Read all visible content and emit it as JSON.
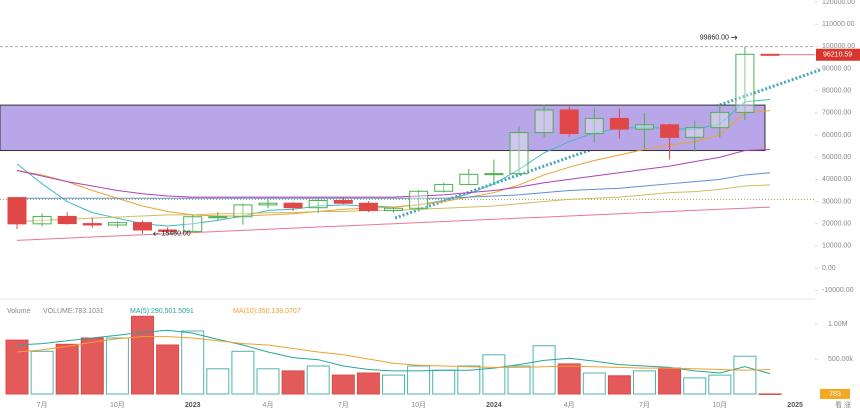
{
  "chart_data": {
    "type": "candlestick",
    "categories": [
      null,
      "7月",
      null,
      null,
      "10月",
      null,
      null,
      "2023",
      null,
      null,
      "4月",
      null,
      null,
      "7月",
      null,
      null,
      "10月",
      null,
      null,
      "2024",
      null,
      null,
      "4月",
      null,
      null,
      "7月",
      null,
      null,
      "10月",
      null,
      null,
      "2025"
    ],
    "open": [
      31790,
      19940,
      23290,
      20050,
      19430,
      20490,
      17170,
      16540,
      23140,
      23150,
      28480,
      29250,
      27220,
      30480,
      29230,
      25940,
      26970,
      34640,
      37720,
      42280,
      42580,
      61130,
      71290,
      60660,
      67490,
      62680,
      64620,
      58970,
      63330,
      70220,
      96400,
      null
    ],
    "high": [
      31960,
      24670,
      25200,
      22800,
      21090,
      21480,
      18390,
      23960,
      25250,
      29190,
      31000,
      29820,
      31430,
      31860,
      30210,
      27490,
      35200,
      38450,
      44730,
      48970,
      63910,
      73800,
      72800,
      71980,
      71980,
      70020,
      65100,
      66500,
      73620,
      99860,
      96500,
      null
    ],
    "low": [
      17620,
      18780,
      19540,
      18150,
      18190,
      15460,
      16260,
      16500,
      21350,
      19570,
      26940,
      25810,
      24800,
      28860,
      25170,
      24900,
      26560,
      34100,
      37630,
      38500,
      41880,
      59010,
      59150,
      56560,
      58400,
      53550,
      49000,
      52550,
      58870,
      66800,
      96000,
      null
    ],
    "close": [
      19940,
      23290,
      20050,
      19430,
      20490,
      17170,
      16540,
      23140,
      23150,
      28480,
      29250,
      27220,
      30480,
      29230,
      25940,
      26970,
      34640,
      37720,
      42280,
      42580,
      61130,
      71290,
      60660,
      67490,
      62680,
      64620,
      58970,
      63330,
      70220,
      96400,
      96210.59,
      null
    ],
    "up_color": "#4caf50",
    "down_color": "#e04848",
    "ylim": [
      -13500,
      120900
    ],
    "yticks": [
      {
        "value": 120000,
        "label": "120000.00"
      },
      {
        "value": 110000,
        "label": "110000.00"
      },
      {
        "value": 100000,
        "label": "100000.00"
      },
      {
        "value": 90000,
        "label": "90000.00"
      },
      {
        "value": 80000,
        "label": "80000.00"
      },
      {
        "value": 70000,
        "label": "70000.00"
      },
      {
        "value": 60000,
        "label": "60000.00"
      },
      {
        "value": 50000,
        "label": "50000.00"
      },
      {
        "value": 40000,
        "label": "40000.00"
      },
      {
        "value": 30000,
        "label": "30000.00"
      },
      {
        "value": 20000,
        "label": "20000.00"
      },
      {
        "value": 10000,
        "label": "10000.00"
      },
      {
        "value": 0,
        "label": "0.00"
      },
      {
        "value": -10000,
        "label": "-10000.00"
      }
    ],
    "grid": false,
    "zone_range": [
      53000,
      73500
    ],
    "level_line": 31000,
    "annotations": [
      {
        "value": 99860,
        "label": "99860.00"
      },
      {
        "value": 15460,
        "label": "15460.00"
      }
    ],
    "moving_averages": [
      {
        "color": "#3fb8c8",
        "values": [
          47000,
          38000,
          30000,
          25000,
          22500,
          20000,
          19000,
          20000,
          21500,
          23500,
          26000,
          26500,
          28000,
          28500,
          28000,
          27500,
          28500,
          30500,
          33500,
          38000,
          44500,
          52000,
          57000,
          61000,
          63000,
          63500,
          63000,
          62500,
          65000,
          75000,
          76000,
          null
        ]
      },
      {
        "color": "#f0a030",
        "values": [
          44000,
          42000,
          39000,
          35000,
          31500,
          28000,
          25500,
          24000,
          23500,
          23500,
          24000,
          24500,
          25500,
          26500,
          27000,
          27500,
          28500,
          30000,
          32000,
          34000,
          37500,
          42000,
          45500,
          48500,
          51000,
          53500,
          55500,
          57000,
          60000,
          70000,
          71000,
          null
        ]
      },
      {
        "color": "#b040b8",
        "values": [
          44000,
          41500,
          39000,
          37000,
          35000,
          33500,
          32500,
          32000,
          32000,
          32000,
          32000,
          32000,
          32000,
          32000,
          32000,
          32000,
          32500,
          33000,
          34000,
          35000,
          36500,
          38500,
          40000,
          41500,
          43000,
          44500,
          46000,
          48000,
          50000,
          53000,
          53500,
          null
        ]
      },
      {
        "color": "#5b8fd8",
        "values": [
          31500,
          31500,
          31500,
          31500,
          31500,
          31500,
          31500,
          31500,
          31500,
          31500,
          31500,
          31500,
          31500,
          31500,
          31500,
          31500,
          31500,
          31500,
          32000,
          32500,
          33000,
          34000,
          35000,
          35500,
          36000,
          37000,
          38000,
          39000,
          40000,
          42000,
          43000,
          null
        ]
      },
      {
        "color": "#c8c060",
        "values": [
          21000,
          21500,
          22000,
          22500,
          23000,
          23500,
          24000,
          24000,
          24500,
          24500,
          25000,
          25000,
          25500,
          25500,
          26000,
          26000,
          26500,
          27000,
          27500,
          28000,
          29000,
          30000,
          31000,
          31500,
          32000,
          33000,
          34000,
          34500,
          35500,
          37000,
          37500,
          null
        ]
      },
      {
        "color": "#e87890",
        "values": [
          12500,
          13000,
          13500,
          14000,
          14500,
          15000,
          15500,
          16000,
          16500,
          17000,
          17500,
          18000,
          18500,
          19000,
          19500,
          20000,
          20500,
          21000,
          21500,
          22000,
          22500,
          23000,
          23500,
          24000,
          24500,
          25000,
          25500,
          26000,
          26500,
          27000,
          27500,
          null
        ]
      }
    ],
    "volume_title": "Volume",
    "volume": [
      770000,
      610000,
      710000,
      800000,
      800000,
      1110000,
      700000,
      900000,
      360000,
      610000,
      360000,
      330000,
      400000,
      270000,
      300000,
      270000,
      400000,
      340000,
      400000,
      560000,
      400000,
      690000,
      430000,
      300000,
      260000,
      330000,
      370000,
      230000,
      270000,
      540000,
      783.1031,
      null
    ],
    "volume_current": {
      "value": 783.1031,
      "label": "VOLUME:783.1031"
    },
    "volume_box": {
      "value": 783.1031,
      "label": "783"
    },
    "volume_ylim": [
      0,
      1300000
    ],
    "volume_yticks": [
      {
        "value": 1000000,
        "label": "1.00M"
      },
      {
        "value": 500000,
        "label": "500.00k"
      }
    ],
    "volume_ma": [
      {
        "color": "#26a69a",
        "current": {
          "value": 290501.5091,
          "label": "MA(5):290,501.5091"
        },
        "values": [
          700000,
          720000,
          760000,
          800000,
          840000,
          880000,
          910000,
          870000,
          780000,
          700000,
          600000,
          520000,
          490000,
          400000,
          350000,
          330000,
          330000,
          340000,
          340000,
          370000,
          420000,
          480000,
          510000,
          470000,
          420000,
          400000,
          380000,
          330000,
          300000,
          390000,
          290501.5091,
          null
        ]
      },
      {
        "color": "#f0a030",
        "current": {
          "value": 350138.0707,
          "label": "MA(10):350,138.0707"
        },
        "values": [
          600000,
          630000,
          680000,
          740000,
          790000,
          820000,
          820000,
          800000,
          760000,
          720000,
          700000,
          650000,
          600000,
          560000,
          500000,
          440000,
          410000,
          400000,
          390000,
          380000,
          380000,
          390000,
          400000,
          390000,
          380000,
          370000,
          370000,
          360000,
          350000,
          340000,
          350138.0707,
          null
        ]
      }
    ],
    "corner_text": "看 涨"
  }
}
